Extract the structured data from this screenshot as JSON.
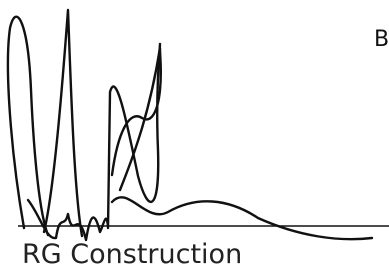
{
  "logo": {
    "name": "RG Construction",
    "corner_text": "B"
  }
}
